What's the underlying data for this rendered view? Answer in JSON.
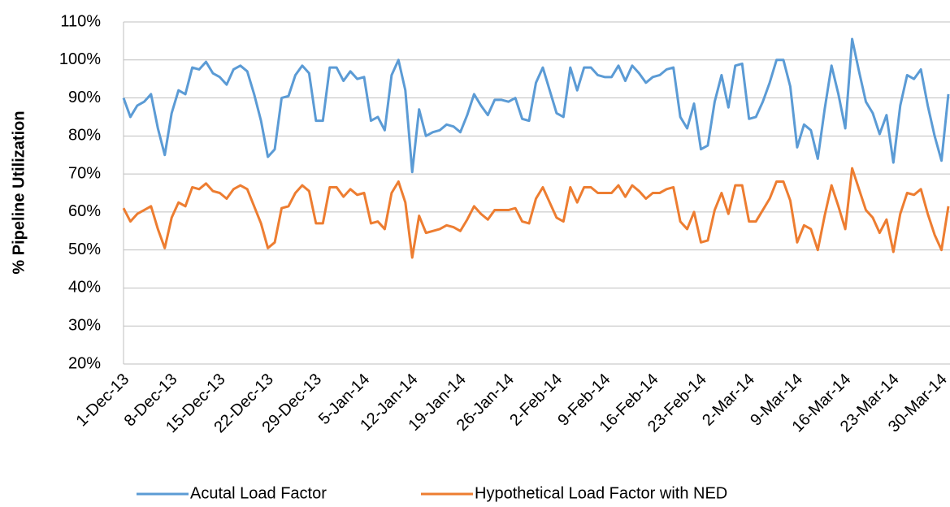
{
  "chart_data": {
    "type": "line",
    "y_label": "% Pipeline Utilization",
    "categories": [
      "1-Dec-13",
      null,
      null,
      null,
      null,
      null,
      null,
      "8-Dec-13",
      null,
      null,
      null,
      null,
      null,
      null,
      "15-Dec-13",
      null,
      null,
      null,
      null,
      null,
      null,
      "22-Dec-13",
      null,
      null,
      null,
      null,
      null,
      null,
      "29-Dec-13",
      null,
      null,
      null,
      null,
      null,
      null,
      "5-Jan-14",
      null,
      null,
      null,
      null,
      null,
      null,
      "12-Jan-14",
      null,
      null,
      null,
      null,
      null,
      null,
      "19-Jan-14",
      null,
      null,
      null,
      null,
      null,
      null,
      "26-Jan-14",
      null,
      null,
      null,
      null,
      null,
      null,
      "2-Feb-14",
      null,
      null,
      null,
      null,
      null,
      null,
      "9-Feb-14",
      null,
      null,
      null,
      null,
      null,
      null,
      "16-Feb-14",
      null,
      null,
      null,
      null,
      null,
      null,
      "23-Feb-14",
      null,
      null,
      null,
      null,
      null,
      null,
      "2-Mar-14",
      null,
      null,
      null,
      null,
      null,
      null,
      "9-Mar-14",
      null,
      null,
      null,
      null,
      null,
      null,
      "16-Mar-14",
      null,
      null,
      null,
      null,
      null,
      null,
      "23-Mar-14",
      null,
      null,
      null,
      null,
      null,
      null,
      "30-Mar-14",
      null
    ],
    "series": [
      {
        "name": "Acutal Load Factor",
        "color": "#5b9bd5",
        "values": [
          90,
          85,
          88,
          89,
          91,
          82,
          75,
          86,
          92,
          91,
          98,
          97.5,
          99.5,
          96.5,
          95.5,
          93.5,
          97.5,
          98.5,
          97,
          91,
          84,
          74.5,
          76.5,
          90,
          90.5,
          96,
          98.5,
          96.5,
          84,
          84,
          98,
          98,
          94.5,
          97,
          95,
          95.5,
          84,
          85,
          81.5,
          96,
          100,
          92,
          70.5,
          87,
          80,
          81,
          81.5,
          83,
          82.5,
          81,
          85.5,
          91,
          88,
          85.5,
          89.5,
          89.5,
          89,
          90,
          84.5,
          84,
          94,
          98,
          92,
          86,
          85,
          98,
          92,
          98,
          98,
          96,
          95.5,
          95.5,
          98.5,
          94.5,
          98.5,
          96.5,
          94,
          95.5,
          96,
          97.5,
          98,
          85,
          82,
          88.5,
          76.5,
          77.5,
          89,
          96,
          87.5,
          98.5,
          99,
          84.5,
          85,
          89,
          94,
          100,
          100,
          93,
          77,
          83,
          81.5,
          74,
          87,
          98.5,
          91,
          82,
          105.5,
          97,
          89,
          86,
          80.5,
          85.5,
          73,
          88,
          96,
          95,
          97.5,
          88,
          80,
          73.5,
          91
        ]
      },
      {
        "name": "Hypothetical Load Factor with NED",
        "color": "#ed7d31",
        "values": [
          61,
          57.5,
          59.5,
          60.5,
          61.5,
          55.5,
          50.5,
          58.5,
          62.5,
          61.5,
          66.5,
          66,
          67.5,
          65.5,
          65,
          63.5,
          66,
          67,
          66,
          61.5,
          57,
          50.5,
          52,
          61,
          61.5,
          65,
          67,
          65.5,
          57,
          57,
          66.5,
          66.5,
          64,
          66,
          64.5,
          65,
          57,
          57.5,
          55.5,
          65,
          68,
          62.5,
          48,
          59,
          54.5,
          55,
          55.5,
          56.5,
          56,
          55,
          58,
          61.5,
          59.5,
          58,
          60.5,
          60.5,
          60.5,
          61,
          57.5,
          57,
          63.5,
          66.5,
          62.5,
          58.5,
          57.5,
          66.5,
          62.5,
          66.5,
          66.5,
          65,
          65,
          65,
          67,
          64,
          67,
          65.5,
          63.5,
          65,
          65,
          66,
          66.5,
          57.5,
          55.5,
          60,
          52,
          52.5,
          60.5,
          65,
          59.5,
          67,
          67,
          57.5,
          57.5,
          60.5,
          63.5,
          68,
          68,
          63,
          52,
          56.5,
          55.5,
          50,
          59,
          67,
          61.5,
          55.5,
          71.5,
          66,
          60.5,
          58.5,
          54.5,
          58,
          49.5,
          59.5,
          65,
          64.5,
          66,
          59.5,
          54,
          50,
          61.5
        ]
      }
    ],
    "ylim": [
      20,
      110
    ],
    "yticks": [
      {
        "value": 20,
        "label": "20%"
      },
      {
        "value": 30,
        "label": "30%"
      },
      {
        "value": 40,
        "label": "40%"
      },
      {
        "value": 50,
        "label": "50%"
      },
      {
        "value": 60,
        "label": "60%"
      },
      {
        "value": 70,
        "label": "70%"
      },
      {
        "value": 80,
        "label": "80%"
      },
      {
        "value": 90,
        "label": "90%"
      },
      {
        "value": 100,
        "label": "100%"
      },
      {
        "value": 110,
        "label": "110%"
      }
    ],
    "grid": true
  }
}
